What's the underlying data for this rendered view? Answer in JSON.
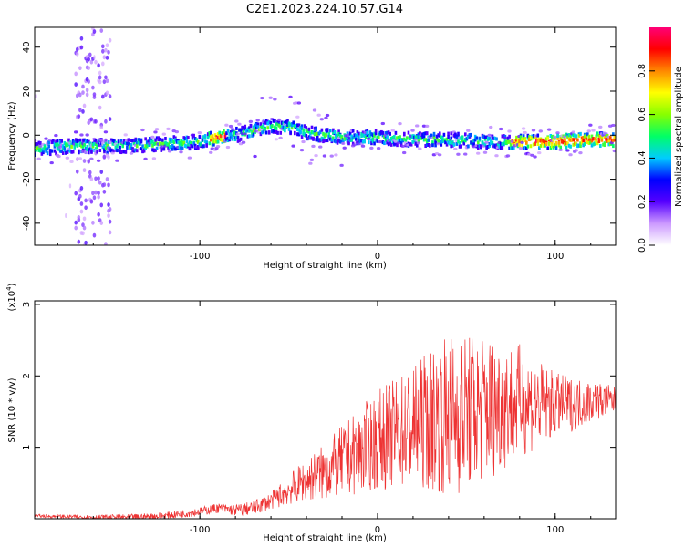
{
  "title": "C2E1.2023.224.10.57.G14",
  "chart_data": [
    {
      "type": "heatmap",
      "xlabel": "Height of straight line (km)",
      "ylabel": "Frequency (Hz)",
      "xlim": [
        -193,
        134
      ],
      "ylim": [
        -50,
        49
      ],
      "x_ticks": [
        -100,
        0,
        100
      ],
      "x_tick_labels": [
        "-100",
        "0",
        "100"
      ],
      "y_ticks": [
        40,
        20,
        0,
        -20,
        -40
      ],
      "y_tick_labels": [
        "40",
        "20",
        "0",
        "-20",
        "-40"
      ],
      "colorbar": {
        "label": "Normalized spectral amplitude",
        "range": [
          0,
          1
        ],
        "ticks": [
          0.0,
          0.2,
          0.4,
          0.6,
          0.8
        ],
        "tick_labels": [
          "0.0",
          "0.2",
          "0.4",
          "0.6",
          "0.8"
        ],
        "colors": [
          "#ffffff",
          "#cc99ff",
          "#5500ff",
          "#0000ff",
          "#00ccff",
          "#00ff66",
          "#88ff00",
          "#ffff00",
          "#ff8800",
          "#ff0000",
          "#ff0077"
        ]
      },
      "ridge": {
        "x": [
          -193,
          -170,
          -150,
          -120,
          -100,
          -90,
          -80,
          -70,
          -60,
          -50,
          -40,
          -30,
          -20,
          -10,
          0,
          20,
          40,
          60,
          80,
          100,
          120,
          134
        ],
        "freq": [
          -6,
          -5,
          -5,
          -4,
          -3,
          -1,
          0,
          2,
          4,
          4,
          1,
          0,
          -1,
          -1,
          -1,
          -2,
          -2,
          -3,
          -3,
          -3,
          -2,
          -2
        ]
      },
      "spike_region": {
        "x_range": [
          -170,
          -150
        ],
        "freq_range": [
          -50,
          49
        ]
      }
    },
    {
      "type": "line",
      "xlabel": "Height of straight line (km)",
      "ylabel": "SNR (10 * v/v)",
      "y_multiplier": "(x10^4)",
      "xlim": [
        -193,
        134
      ],
      "ylim": [
        0,
        3.05
      ],
      "x_ticks": [
        -100,
        0,
        100
      ],
      "x_tick_labels": [
        "-100",
        "0",
        "100"
      ],
      "y_ticks": [
        1,
        2,
        3
      ],
      "y_tick_labels": [
        "1",
        "2",
        "3"
      ],
      "series": [
        {
          "color": "#ee3333",
          "baseline": {
            "x": [
              -193,
              -160,
              -140,
              -120,
              -100,
              -90,
              -80,
              -70,
              -60,
              -50,
              -40,
              -30,
              -20,
              -10,
              0,
              10,
              20,
              30,
              40,
              50,
              60,
              70,
              80,
              90,
              100,
              110,
              120,
              134
            ],
            "y": [
              0.04,
              0.02,
              0.02,
              0.04,
              0.1,
              0.15,
              0.12,
              0.15,
              0.25,
              0.4,
              0.55,
              0.65,
              0.8,
              0.95,
              1.1,
              1.2,
              1.3,
              1.4,
              1.45,
              1.5,
              1.55,
              1.6,
              1.65,
              1.6,
              1.6,
              1.6,
              1.65,
              1.65
            ]
          },
          "amplitude": {
            "x": [
              -193,
              -100,
              -80,
              -60,
              -40,
              -20,
              0,
              20,
              40,
              60,
              80,
              100,
              120,
              134
            ],
            "y": [
              0.02,
              0.06,
              0.08,
              0.12,
              0.3,
              0.5,
              0.7,
              0.85,
              1.15,
              1.05,
              0.8,
              0.45,
              0.3,
              0.2
            ]
          }
        }
      ]
    }
  ]
}
